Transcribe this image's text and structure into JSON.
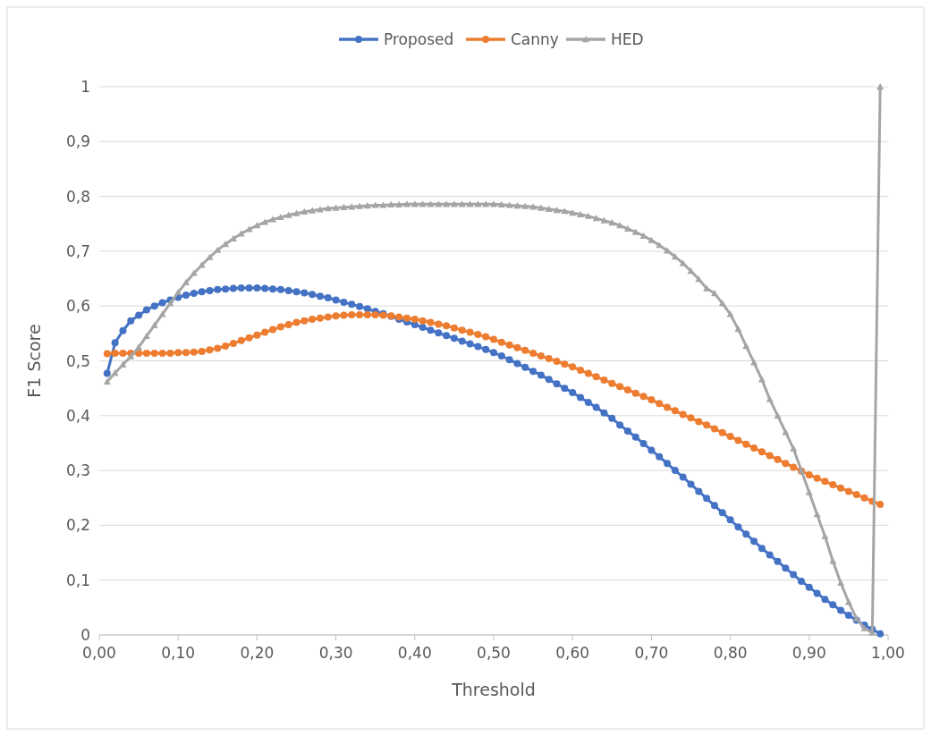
{
  "chart_data": {
    "type": "line",
    "xlabel": "Threshold",
    "ylabel": "F1 Score",
    "xlim": [
      0,
      1
    ],
    "ylim": [
      0,
      1
    ],
    "xticks": [
      {
        "value": 0,
        "label": "0,00"
      },
      {
        "value": 0.1,
        "label": "0,10"
      },
      {
        "value": 0.2,
        "label": "0,20"
      },
      {
        "value": 0.3,
        "label": "0,30"
      },
      {
        "value": 0.4,
        "label": "0,40"
      },
      {
        "value": 0.5,
        "label": "0,50"
      },
      {
        "value": 0.6,
        "label": "0,60"
      },
      {
        "value": 0.7,
        "label": "0,70"
      },
      {
        "value": 0.8,
        "label": "0,80"
      },
      {
        "value": 0.9,
        "label": "0,90"
      },
      {
        "value": 1,
        "label": "1,00"
      }
    ],
    "yticks": [
      0,
      {
        "value": 0.1,
        "label": "0,1"
      },
      {
        "value": 0.2,
        "label": "0,2"
      },
      {
        "value": 0.3,
        "label": "0,3"
      },
      {
        "value": 0.4,
        "label": "0,4"
      },
      {
        "value": 0.5,
        "label": "0,5"
      },
      {
        "value": 0.6,
        "label": "0,6"
      },
      {
        "value": 0.7,
        "label": "0,7"
      },
      {
        "value": 0.8,
        "label": "0,8"
      },
      {
        "value": 0.9,
        "label": "0,9"
      },
      1
    ],
    "grid": "y",
    "legend": "top",
    "x": [
      0.01,
      0.02,
      0.03,
      0.04,
      0.05,
      0.06,
      0.07,
      0.08,
      0.09,
      0.1,
      0.11,
      0.12,
      0.13,
      0.14,
      0.15,
      0.16,
      0.17,
      0.18,
      0.19,
      0.2,
      0.21,
      0.22,
      0.23,
      0.24,
      0.25,
      0.26,
      0.27,
      0.28,
      0.29,
      0.3,
      0.31,
      0.32,
      0.33,
      0.34,
      0.35,
      0.36,
      0.37,
      0.38,
      0.39,
      0.4,
      0.41,
      0.42,
      0.43,
      0.44,
      0.45,
      0.46,
      0.47,
      0.48,
      0.49,
      0.5,
      0.51,
      0.52,
      0.53,
      0.54,
      0.55,
      0.56,
      0.57,
      0.58,
      0.59,
      0.6,
      0.61,
      0.62,
      0.63,
      0.64,
      0.65,
      0.66,
      0.67,
      0.68,
      0.69,
      0.7,
      0.71,
      0.72,
      0.73,
      0.74,
      0.75,
      0.76,
      0.77,
      0.78,
      0.79,
      0.8,
      0.81,
      0.82,
      0.83,
      0.84,
      0.85,
      0.86,
      0.87,
      0.88,
      0.89,
      0.9,
      0.91,
      0.92,
      0.93,
      0.94,
      0.95,
      0.96,
      0.97,
      0.98,
      0.99
    ],
    "series": [
      {
        "name": "Proposed",
        "color": "#4472c4",
        "marker": "circle",
        "values": [
          0.477,
          0.533,
          0.555,
          0.573,
          0.583,
          0.593,
          0.6,
          0.606,
          0.611,
          0.616,
          0.62,
          0.623,
          0.626,
          0.628,
          0.63,
          0.631,
          0.632,
          0.633,
          0.633,
          0.633,
          0.632,
          0.631,
          0.63,
          0.628,
          0.626,
          0.624,
          0.621,
          0.618,
          0.615,
          0.611,
          0.607,
          0.603,
          0.599,
          0.595,
          0.59,
          0.586,
          0.581,
          0.576,
          0.571,
          0.566,
          0.561,
          0.556,
          0.551,
          0.546,
          0.541,
          0.536,
          0.531,
          0.526,
          0.521,
          0.515,
          0.509,
          0.502,
          0.495,
          0.488,
          0.481,
          0.474,
          0.466,
          0.458,
          0.45,
          0.442,
          0.433,
          0.424,
          0.415,
          0.405,
          0.395,
          0.383,
          0.372,
          0.361,
          0.349,
          0.337,
          0.325,
          0.313,
          0.3,
          0.288,
          0.275,
          0.262,
          0.249,
          0.236,
          0.223,
          0.21,
          0.197,
          0.184,
          0.171,
          0.158,
          0.146,
          0.134,
          0.122,
          0.11,
          0.098,
          0.087,
          0.076,
          0.065,
          0.055,
          0.045,
          0.036,
          0.027,
          0.018,
          0.01,
          0.002
        ]
      },
      {
        "name": "Canny",
        "color": "#ed7d31",
        "marker": "circle",
        "values": [
          0.513,
          0.514,
          0.514,
          0.514,
          0.514,
          0.514,
          0.514,
          0.514,
          0.514,
          0.515,
          0.515,
          0.516,
          0.517,
          0.52,
          0.523,
          0.527,
          0.532,
          0.537,
          0.542,
          0.547,
          0.552,
          0.557,
          0.562,
          0.566,
          0.57,
          0.573,
          0.576,
          0.578,
          0.58,
          0.582,
          0.583,
          0.584,
          0.584,
          0.584,
          0.584,
          0.583,
          0.582,
          0.58,
          0.578,
          0.576,
          0.573,
          0.57,
          0.567,
          0.564,
          0.56,
          0.556,
          0.552,
          0.548,
          0.544,
          0.539,
          0.534,
          0.529,
          0.524,
          0.519,
          0.514,
          0.509,
          0.504,
          0.499,
          0.494,
          0.489,
          0.483,
          0.477,
          0.471,
          0.465,
          0.459,
          0.453,
          0.447,
          0.441,
          0.435,
          0.429,
          0.422,
          0.415,
          0.409,
          0.402,
          0.396,
          0.389,
          0.383,
          0.376,
          0.369,
          0.362,
          0.355,
          0.348,
          0.341,
          0.334,
          0.327,
          0.32,
          0.313,
          0.306,
          0.299,
          0.292,
          0.286,
          0.28,
          0.274,
          0.268,
          0.262,
          0.256,
          0.25,
          0.244,
          0.238
        ]
      },
      {
        "name": "HED",
        "color": "#a5a5a5",
        "marker": "triangle",
        "values": [
          0.462,
          0.478,
          0.493,
          0.508,
          0.525,
          0.545,
          0.565,
          0.585,
          0.605,
          0.625,
          0.643,
          0.66,
          0.675,
          0.689,
          0.702,
          0.713,
          0.723,
          0.732,
          0.74,
          0.747,
          0.753,
          0.758,
          0.762,
          0.766,
          0.769,
          0.772,
          0.774,
          0.776,
          0.778,
          0.779,
          0.78,
          0.781,
          0.782,
          0.783,
          0.784,
          0.784,
          0.785,
          0.785,
          0.786,
          0.786,
          0.786,
          0.786,
          0.786,
          0.786,
          0.786,
          0.786,
          0.786,
          0.786,
          0.786,
          0.786,
          0.785,
          0.784,
          0.783,
          0.782,
          0.781,
          0.779,
          0.777,
          0.775,
          0.773,
          0.77,
          0.767,
          0.764,
          0.76,
          0.756,
          0.752,
          0.747,
          0.741,
          0.735,
          0.728,
          0.72,
          0.711,
          0.701,
          0.69,
          0.678,
          0.664,
          0.649,
          0.632,
          0.623,
          0.605,
          0.585,
          0.558,
          0.527,
          0.497,
          0.466,
          0.43,
          0.4,
          0.37,
          0.34,
          0.3,
          0.26,
          0.22,
          0.18,
          0.135,
          0.095,
          0.06,
          0.03,
          0.012,
          0.004,
          1
        ]
      }
    ]
  }
}
